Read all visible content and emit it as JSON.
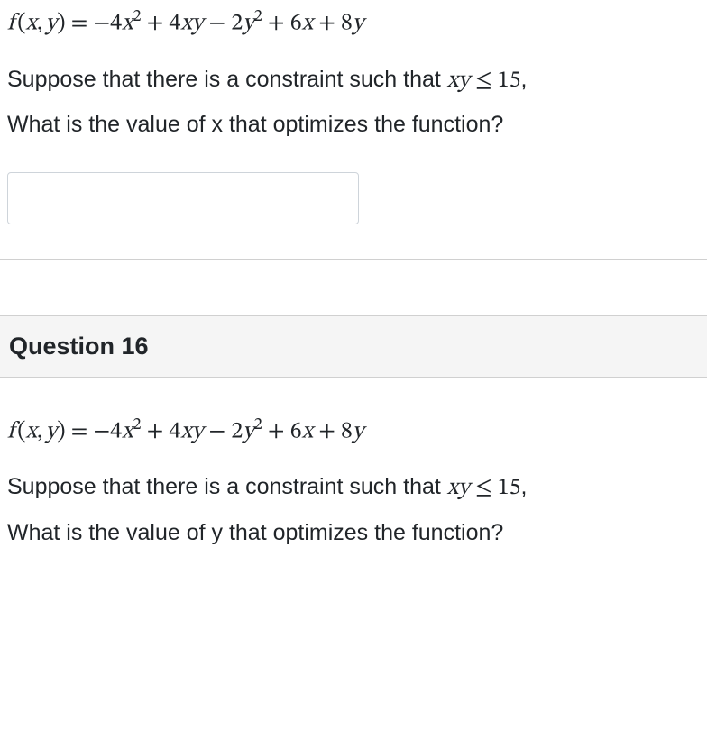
{
  "q15": {
    "equation_html": "f<span class='rm'>&thinsp;(</span>x<span class='rm'>,&thinsp;</span>y<span class='rm'>)</span> <span class='rm'>=</span> <span class='rm'>&minus;4</span>x<sup>2</sup> <span class='rm'>+ 4</span>xy <span class='rm'>&minus; 2</span>y<sup>2</sup> <span class='rm'>+ 6</span>x <span class='rm'>+ 8</span>y",
    "constraint_prefix": "Suppose that there is a constraint such that ",
    "constraint_math_html": "xy <span class='nonitalic'>&le; 15</span>",
    "constraint_suffix": ",",
    "prompt": "What is the value of x that optimizes the function?",
    "answer_value": ""
  },
  "q16": {
    "title": "Question 16",
    "equation_html": "f<span class='rm'>&thinsp;(</span>x<span class='rm'>,&thinsp;</span>y<span class='rm'>)</span> <span class='rm'>=</span> <span class='rm'>&minus;4</span>x<sup>2</sup> <span class='rm'>+ 4</span>xy <span class='rm'>&minus; 2</span>y<sup>2</sup> <span class='rm'>+ 6</span>x <span class='rm'>+ 8</span>y",
    "constraint_prefix": "Suppose that there is a constraint such that ",
    "constraint_math_html": "xy <span class='nonitalic'>&le; 15</span>",
    "constraint_suffix": ",",
    "prompt": "What is the value of y that optimizes the function?"
  }
}
